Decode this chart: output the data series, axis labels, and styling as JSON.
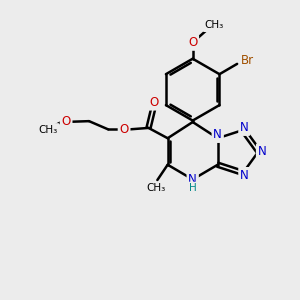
{
  "bg_color": "#ececec",
  "bond_color": "#000000",
  "bond_width": 1.8,
  "atom_colors": {
    "O": "#cc0000",
    "N": "#0000cc",
    "Br": "#a05000",
    "H": "#008888",
    "C": "#000000"
  },
  "font_size_atom": 8.5,
  "font_size_small": 7.5,
  "figsize": [
    3.0,
    3.0
  ],
  "dpi": 100,
  "xlim": [
    0,
    10
  ],
  "ylim": [
    0,
    10
  ]
}
